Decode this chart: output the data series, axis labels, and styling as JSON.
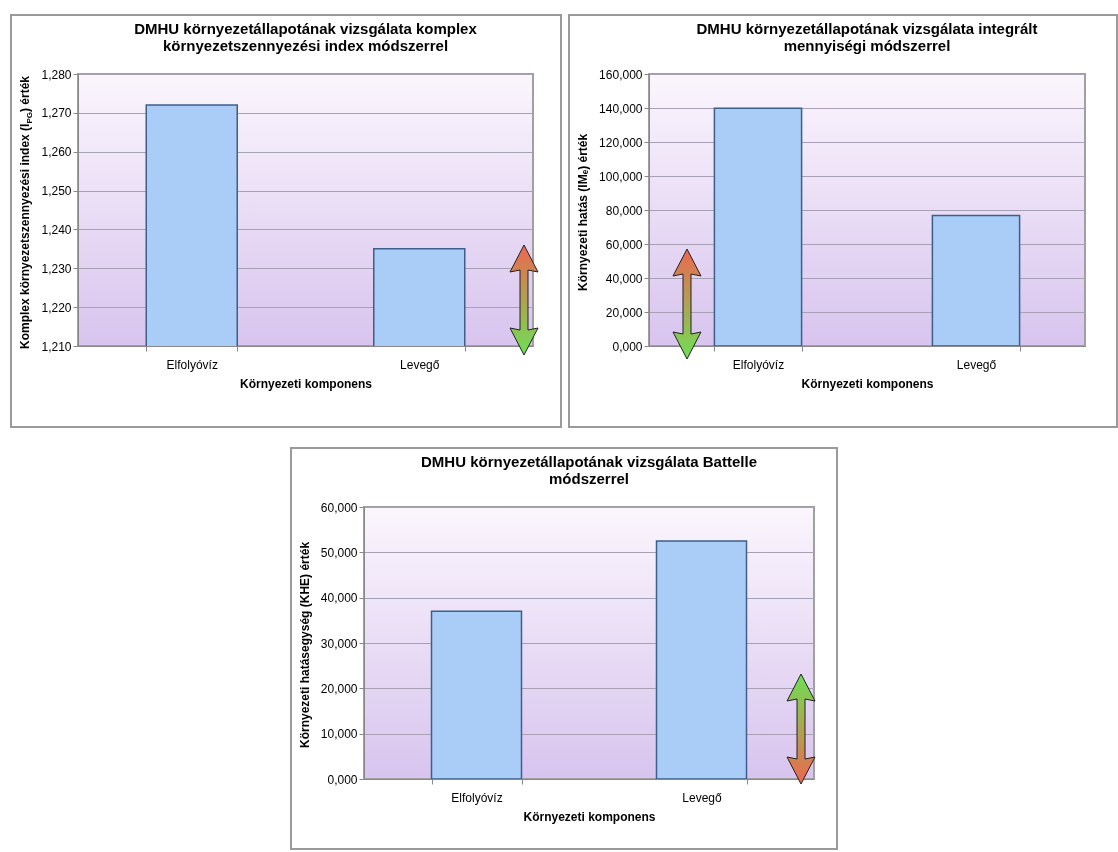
{
  "chart_data": [
    {
      "type": "bar",
      "title": "DMHU környezetállapotának vizsgálata komplex környezetszennyezési index módszerrel",
      "xlabel": "Környezeti komponens",
      "ylabel": "Komplex környezetszennyezési index (I$_{PG}$) érték",
      "categories": [
        "Elfolyóvíz",
        "Levegő"
      ],
      "values": [
        1.272,
        1.235
      ],
      "color": "#a9cdf7",
      "ylim": [
        1.21,
        1.28
      ],
      "yticks": [
        {
          "value": 1.21,
          "label": "1,210"
        },
        {
          "value": 1.22,
          "label": "1,220"
        },
        {
          "value": 1.23,
          "label": "1,230"
        },
        {
          "value": 1.24,
          "label": "1,240"
        },
        {
          "value": 1.25,
          "label": "1,250"
        },
        {
          "value": 1.26,
          "label": "1,260"
        },
        {
          "value": 1.27,
          "label": "1,270"
        },
        {
          "value": 1.28,
          "label": "1,280"
        }
      ],
      "grid": "y"
    },
    {
      "type": "bar",
      "title": "DMHU környezetállapotának vizsgálata integrált mennyiségi módszerrel",
      "xlabel": "Környezeti komponens",
      "ylabel": "Környezeti hatás (IMₑ) érték",
      "categories": [
        "Elfolyóvíz",
        "Levegő"
      ],
      "values": [
        139.8,
        76.7
      ],
      "color": "#a9cdf7",
      "ylim": [
        0,
        160
      ],
      "yticks": [
        {
          "value": 0,
          "label": "0,000"
        },
        {
          "value": 20,
          "label": "20,000"
        },
        {
          "value": 40,
          "label": "40,000"
        },
        {
          "value": 60,
          "label": "60,000"
        },
        {
          "value": 80,
          "label": "80,000"
        },
        {
          "value": 100,
          "label": "100,000"
        },
        {
          "value": 120,
          "label": "120,000"
        },
        {
          "value": 140,
          "label": "140,000"
        },
        {
          "value": 160,
          "label": "160,000"
        }
      ],
      "grid": "y"
    },
    {
      "type": "bar",
      "title": "DMHU környezetállapotának vizsgálata Battelle módszerrel",
      "xlabel": "Környezeti komponens",
      "ylabel": "Környezeti hatásegység (KHE) érték",
      "categories": [
        "Elfolyóvíz",
        "Levegő"
      ],
      "values": [
        37.0,
        52.5
      ],
      "color": "#a9cdf7",
      "ylim": [
        0,
        60
      ],
      "yticks": [
        {
          "value": 0,
          "label": "0,000"
        },
        {
          "value": 10,
          "label": "10,000"
        },
        {
          "value": 20,
          "label": "20,000"
        },
        {
          "value": 30,
          "label": "30,000"
        },
        {
          "value": 40,
          "label": "40,000"
        },
        {
          "value": 50,
          "label": "50,000"
        },
        {
          "value": 60,
          "label": "60,000"
        }
      ],
      "grid": "y"
    }
  ]
}
